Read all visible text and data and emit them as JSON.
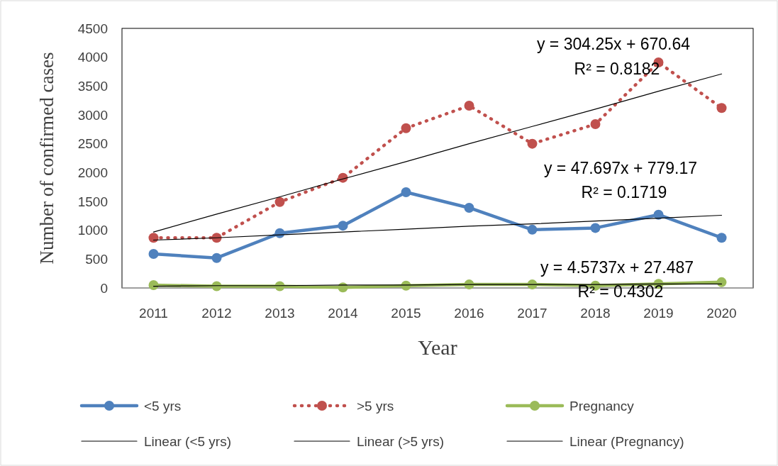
{
  "chart_data": {
    "type": "line",
    "xlabel": "Year",
    "ylabel": "Number of confirmed cases",
    "categories": [
      "2011",
      "2012",
      "2013",
      "2014",
      "2015",
      "2016",
      "2017",
      "2018",
      "2019",
      "2020"
    ],
    "ylim": [
      0,
      4500
    ],
    "yticks": [
      0,
      500,
      1000,
      1500,
      2000,
      2500,
      3000,
      3500,
      4000,
      4500
    ],
    "grid": false,
    "legend": "bottom",
    "series": [
      {
        "name": "<5 yrs",
        "color": "#4f81bd",
        "marker": "circle",
        "line_style": "solid",
        "values": [
          590,
          520,
          950,
          1080,
          1660,
          1390,
          1010,
          1040,
          1270,
          870
        ]
      },
      {
        "name": ">5 yrs",
        "color": "#c0504d",
        "marker": "circle",
        "line_style": "dotted",
        "values": [
          870,
          870,
          1490,
          1910,
          2770,
          3160,
          2500,
          2840,
          3910,
          3120
        ]
      },
      {
        "name": "Pregnancy",
        "color": "#9bbb59",
        "marker": "circle",
        "line_style": "solid",
        "values": [
          50,
          30,
          30,
          10,
          40,
          60,
          60,
          40,
          70,
          100
        ]
      },
      {
        "name": "Linear (<5 yrs)",
        "type": "line",
        "color": "#000000",
        "marker": "none",
        "line_style": "solid",
        "values": [
          830,
          870,
          920,
          970,
          1020,
          1070,
          1110,
          1160,
          1210,
          1260
        ]
      },
      {
        "name": "Linear (>5 yrs)",
        "type": "line",
        "color": "#000000",
        "marker": "none",
        "line_style": "solid",
        "values": [
          970,
          1280,
          1580,
          1890,
          2190,
          2500,
          2800,
          3100,
          3410,
          3710
        ]
      },
      {
        "name": "Linear (Pregnancy)",
        "type": "line",
        "color": "#000000",
        "marker": "none",
        "line_style": "solid",
        "values": [
          30,
          40,
          40,
          50,
          50,
          60,
          60,
          60,
          70,
          70
        ]
      }
    ],
    "annotations": [
      "y = 304.25x + 670.64",
      "R² = 0.8182",
      "y = 47.697x + 779.17",
      "R² = 0.1719",
      "y = 4.5737x + 27.487",
      "R² = 0.4302"
    ]
  }
}
